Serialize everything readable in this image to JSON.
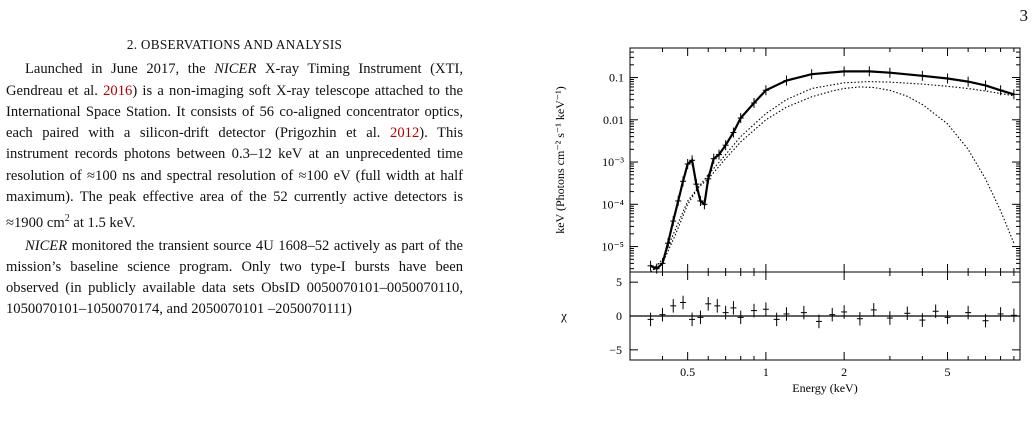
{
  "page_number": "3",
  "section": {
    "title": "2. OBSERVATIONS AND ANALYSIS",
    "p1": [
      "Launched in June 2017, the ",
      "NICER",
      " X-ray Timing Instrument (XTI, Gendreau et al. ",
      "2016",
      ") is a non-imaging soft X-ray telescope attached to the International Space Station. It consists of 56 co-aligned concentrator optics, each paired with a silicon-drift detector (Prigozhin et al. ",
      "2012",
      "). This instrument records photons between 0.3–12 keV at an unprecedented time resolution of ≈100 ns and spectral resolution of ≈100 eV (full width at half maximum). The peak effective area of the 52 currently active detectors is ≈1900 cm",
      "2",
      " at 1.5 keV."
    ],
    "p2": [
      "NICER",
      " monitored the transient source 4U 1608–52 actively as part of the mission’s baseline science program. Only two type-I bursts have been observed (in publicly available data sets ObsID 0050070101–0050070110, 1050070101–1050070174, and 2050070101 –2050070111)"
    ]
  },
  "chart_data": [
    {
      "type": "line",
      "panel": "spectrum",
      "ylabel": "keV (Photons cm⁻² s⁻¹ keV⁻¹)",
      "x_scale": "log",
      "y_scale": "log",
      "xlim": [
        0.3,
        9.5
      ],
      "ylim": [
        2.5e-06,
        0.5
      ],
      "y_tick_labels": [
        "10⁻⁵",
        "10⁻⁴",
        "10⁻³",
        "0.01",
        "0.1"
      ],
      "y_tick_values": [
        1e-05,
        0.0001,
        0.001,
        0.01,
        0.1
      ],
      "series": [
        {
          "role": "data",
          "x": [
            0.36,
            0.38,
            0.4,
            0.42,
            0.44,
            0.46,
            0.48,
            0.5,
            0.52,
            0.54,
            0.56,
            0.58,
            0.6,
            0.63,
            0.66,
            0.7,
            0.75,
            0.8,
            0.9,
            1.0,
            1.2,
            1.5,
            2.0,
            2.5,
            3.0,
            4.0,
            5.0,
            6.0,
            7.0,
            8.0,
            9.0
          ],
          "y": [
            3.5e-06,
            3e-06,
            4e-06,
            1.2e-05,
            4e-05,
            0.00012,
            0.00035,
            0.0009,
            0.0011,
            0.0003,
            0.00012,
            0.0001,
            0.0004,
            0.0012,
            0.0015,
            0.0025,
            0.005,
            0.011,
            0.025,
            0.05,
            0.085,
            0.12,
            0.14,
            0.14,
            0.13,
            0.11,
            0.095,
            0.08,
            0.065,
            0.05,
            0.04
          ]
        },
        {
          "role": "model-component-1",
          "x": [
            0.36,
            0.4,
            0.45,
            0.5,
            0.55,
            0.6,
            0.7,
            0.8,
            1.0,
            1.2,
            1.5,
            1.8,
            2.0,
            2.3,
            2.6,
            3.0,
            3.5,
            4.0,
            5.0,
            6.0,
            7.0,
            8.0,
            9.0
          ],
          "y": [
            2.5e-06,
            4e-06,
            2e-05,
            0.0001,
            0.00025,
            0.0004,
            0.0012,
            0.003,
            0.01,
            0.02,
            0.035,
            0.048,
            0.055,
            0.06,
            0.058,
            0.05,
            0.036,
            0.023,
            0.008,
            0.002,
            0.0004,
            7e-05,
            1.2e-05
          ]
        },
        {
          "role": "model-component-2",
          "x": [
            0.36,
            0.4,
            0.5,
            0.6,
            0.7,
            0.8,
            1.0,
            1.2,
            1.5,
            2.0,
            2.5,
            3.0,
            4.0,
            5.0,
            6.0,
            7.0,
            8.0,
            9.0
          ],
          "y": [
            2.5e-06,
            5e-06,
            0.00012,
            0.0005,
            0.0015,
            0.004,
            0.014,
            0.03,
            0.055,
            0.075,
            0.08,
            0.078,
            0.07,
            0.062,
            0.055,
            0.048,
            0.042,
            0.037
          ]
        }
      ]
    },
    {
      "type": "scatter",
      "panel": "residuals",
      "xlabel": "Energy (keV)",
      "ylabel": "χ",
      "x_scale": "log",
      "xlim": [
        0.3,
        9.5
      ],
      "ylim": [
        -6.5,
        6.5
      ],
      "x_tick_labels": [
        "0.5",
        "1",
        "2",
        "5"
      ],
      "x_tick_values": [
        0.5,
        1,
        2,
        5
      ],
      "y_tick_labels": [
        "5",
        "0",
        "−5"
      ],
      "y_tick_values": [
        5,
        0,
        -5
      ],
      "x": [
        0.36,
        0.4,
        0.44,
        0.48,
        0.52,
        0.56,
        0.6,
        0.65,
        0.7,
        0.75,
        0.8,
        0.9,
        1.0,
        1.1,
        1.2,
        1.4,
        1.6,
        1.8,
        2.0,
        2.3,
        2.6,
        3.0,
        3.5,
        4.0,
        4.5,
        5.0,
        6.0,
        7.0,
        8.0,
        9.0
      ],
      "y": [
        -0.5,
        0.2,
        1.5,
        2.0,
        -0.5,
        -0.2,
        1.8,
        1.5,
        0.5,
        1.2,
        -0.2,
        0.8,
        1.0,
        -0.5,
        0.3,
        0.5,
        -0.8,
        0.2,
        0.6,
        -0.4,
        0.9,
        -0.3,
        0.4,
        -0.6,
        0.7,
        -0.2,
        0.5,
        -0.7,
        0.3,
        0.1
      ]
    }
  ]
}
